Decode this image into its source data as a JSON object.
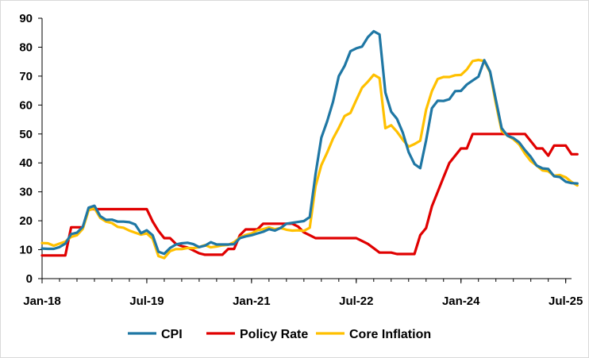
{
  "chart_data": {
    "type": "line",
    "title": "",
    "xlabel": "",
    "ylabel": "",
    "ylim": [
      0,
      90
    ],
    "yticks": [
      0,
      10,
      20,
      30,
      40,
      50,
      60,
      70,
      80,
      90
    ],
    "xlim": [
      "2018-01",
      "2025-08"
    ],
    "xtick_labels": [
      "Jan-18",
      "Jul-19",
      "Jan-21",
      "Jul-22",
      "Jan-24",
      "Jul-25"
    ],
    "grid": false,
    "legend_position": "bottom",
    "series": [
      {
        "name": "CPI",
        "color": "#1F77A4",
        "points": [
          [
            "2018-01",
            10.4
          ],
          [
            "2018-02",
            10.3
          ],
          [
            "2018-03",
            10.3
          ],
          [
            "2018-04",
            10.9
          ],
          [
            "2018-05",
            12.1
          ],
          [
            "2018-06",
            15.4
          ],
          [
            "2018-07",
            15.9
          ],
          [
            "2018-08",
            17.9
          ],
          [
            "2018-09",
            24.5
          ],
          [
            "2018-10",
            25.2
          ],
          [
            "2018-11",
            21.6
          ],
          [
            "2018-12",
            20.3
          ],
          [
            "2019-01",
            20.4
          ],
          [
            "2019-02",
            19.7
          ],
          [
            "2019-03",
            19.7
          ],
          [
            "2019-04",
            19.5
          ],
          [
            "2019-05",
            18.7
          ],
          [
            "2019-06",
            15.7
          ],
          [
            "2019-07",
            16.7
          ],
          [
            "2019-08",
            15.0
          ],
          [
            "2019-09",
            9.3
          ],
          [
            "2019-10",
            8.6
          ],
          [
            "2019-11",
            10.6
          ],
          [
            "2019-12",
            11.8
          ],
          [
            "2020-01",
            12.2
          ],
          [
            "2020-02",
            12.4
          ],
          [
            "2020-03",
            11.9
          ],
          [
            "2020-04",
            10.9
          ],
          [
            "2020-05",
            11.4
          ],
          [
            "2020-06",
            12.6
          ],
          [
            "2020-07",
            11.8
          ],
          [
            "2020-08",
            11.8
          ],
          [
            "2020-09",
            11.8
          ],
          [
            "2020-10",
            11.9
          ],
          [
            "2020-11",
            14.0
          ],
          [
            "2020-12",
            14.6
          ],
          [
            "2021-01",
            15.0
          ],
          [
            "2021-02",
            15.6
          ],
          [
            "2021-03",
            16.2
          ],
          [
            "2021-04",
            17.1
          ],
          [
            "2021-05",
            16.6
          ],
          [
            "2021-06",
            17.5
          ],
          [
            "2021-07",
            19.0
          ],
          [
            "2021-08",
            19.3
          ],
          [
            "2021-09",
            19.6
          ],
          [
            "2021-10",
            19.9
          ],
          [
            "2021-11",
            21.3
          ],
          [
            "2021-12",
            36.1
          ],
          [
            "2022-01",
            48.7
          ],
          [
            "2022-02",
            54.4
          ],
          [
            "2022-03",
            61.1
          ],
          [
            "2022-04",
            70.0
          ],
          [
            "2022-05",
            73.5
          ],
          [
            "2022-06",
            78.6
          ],
          [
            "2022-07",
            79.6
          ],
          [
            "2022-08",
            80.2
          ],
          [
            "2022-09",
            83.5
          ],
          [
            "2022-10",
            85.5
          ],
          [
            "2022-11",
            84.4
          ],
          [
            "2022-12",
            64.3
          ],
          [
            "2023-01",
            57.7
          ],
          [
            "2023-02",
            55.2
          ],
          [
            "2023-03",
            50.5
          ],
          [
            "2023-04",
            43.7
          ],
          [
            "2023-05",
            39.6
          ],
          [
            "2023-06",
            38.2
          ],
          [
            "2023-07",
            47.8
          ],
          [
            "2023-08",
            58.9
          ],
          [
            "2023-09",
            61.5
          ],
          [
            "2023-10",
            61.4
          ],
          [
            "2023-11",
            62.0
          ],
          [
            "2023-12",
            64.8
          ],
          [
            "2024-01",
            64.9
          ],
          [
            "2024-02",
            67.1
          ],
          [
            "2024-03",
            68.5
          ],
          [
            "2024-04",
            69.8
          ],
          [
            "2024-05",
            75.5
          ],
          [
            "2024-06",
            71.6
          ],
          [
            "2024-07",
            61.8
          ],
          [
            "2024-08",
            52.0
          ],
          [
            "2024-09",
            49.4
          ],
          [
            "2024-10",
            48.6
          ],
          [
            "2024-11",
            47.1
          ],
          [
            "2024-12",
            44.4
          ],
          [
            "2025-01",
            42.1
          ],
          [
            "2025-02",
            39.1
          ],
          [
            "2025-03",
            38.1
          ],
          [
            "2025-04",
            37.9
          ],
          [
            "2025-05",
            35.4
          ],
          [
            "2025-06",
            35.1
          ],
          [
            "2025-07",
            33.5
          ],
          [
            "2025-08",
            33.0
          ],
          [
            "2025-09",
            32.9
          ]
        ]
      },
      {
        "name": "Policy Rate",
        "color": "#E00000",
        "points": [
          [
            "2018-01",
            8.0
          ],
          [
            "2018-05",
            8.0
          ],
          [
            "2018-06",
            17.75
          ],
          [
            "2018-08",
            17.75
          ],
          [
            "2018-09",
            24.0
          ],
          [
            "2019-07",
            24.0
          ],
          [
            "2019-08",
            19.75
          ],
          [
            "2019-09",
            16.5
          ],
          [
            "2019-10",
            14.0
          ],
          [
            "2019-11",
            14.0
          ],
          [
            "2019-12",
            12.0
          ],
          [
            "2020-01",
            11.25
          ],
          [
            "2020-02",
            10.75
          ],
          [
            "2020-03",
            9.75
          ],
          [
            "2020-04",
            8.75
          ],
          [
            "2020-05",
            8.25
          ],
          [
            "2020-06",
            8.25
          ],
          [
            "2020-08",
            8.25
          ],
          [
            "2020-09",
            10.25
          ],
          [
            "2020-10",
            10.25
          ],
          [
            "2020-11",
            15.0
          ],
          [
            "2020-12",
            17.0
          ],
          [
            "2021-02",
            17.0
          ],
          [
            "2021-03",
            19.0
          ],
          [
            "2021-08",
            19.0
          ],
          [
            "2021-09",
            18.0
          ],
          [
            "2021-10",
            16.0
          ],
          [
            "2021-11",
            15.0
          ],
          [
            "2021-12",
            14.0
          ],
          [
            "2022-07",
            14.0
          ],
          [
            "2022-08",
            13.0
          ],
          [
            "2022-09",
            12.0
          ],
          [
            "2022-10",
            10.5
          ],
          [
            "2022-11",
            9.0
          ],
          [
            "2023-01",
            9.0
          ],
          [
            "2023-02",
            8.5
          ],
          [
            "2023-05",
            8.5
          ],
          [
            "2023-06",
            15.0
          ],
          [
            "2023-07",
            17.5
          ],
          [
            "2023-08",
            25.0
          ],
          [
            "2023-09",
            30.0
          ],
          [
            "2023-10",
            35.0
          ],
          [
            "2023-11",
            40.0
          ],
          [
            "2023-12",
            42.5
          ],
          [
            "2024-01",
            45.0
          ],
          [
            "2024-02",
            45.0
          ],
          [
            "2024-03",
            50.0
          ],
          [
            "2024-12",
            50.0
          ],
          [
            "2025-01",
            47.5
          ],
          [
            "2025-02",
            45.0
          ],
          [
            "2025-03",
            45.0
          ],
          [
            "2025-04",
            42.5
          ],
          [
            "2025-05",
            46.0
          ],
          [
            "2025-07",
            46.0
          ],
          [
            "2025-08",
            43.0
          ],
          [
            "2025-09",
            43.0
          ]
        ]
      },
      {
        "name": "Core Inflation",
        "color": "#FFC000",
        "points": [
          [
            "2018-01",
            12.3
          ],
          [
            "2018-02",
            12.2
          ],
          [
            "2018-03",
            11.4
          ],
          [
            "2018-04",
            12.1
          ],
          [
            "2018-05",
            12.8
          ],
          [
            "2018-06",
            14.4
          ],
          [
            "2018-07",
            15.0
          ],
          [
            "2018-08",
            17.2
          ],
          [
            "2018-09",
            23.6
          ],
          [
            "2018-10",
            24.3
          ],
          [
            "2018-11",
            21.0
          ],
          [
            "2018-12",
            19.7
          ],
          [
            "2019-01",
            19.2
          ],
          [
            "2019-02",
            17.9
          ],
          [
            "2019-03",
            17.6
          ],
          [
            "2019-04",
            16.6
          ],
          [
            "2019-05",
            15.9
          ],
          [
            "2019-06",
            15.2
          ],
          [
            "2019-07",
            15.6
          ],
          [
            "2019-08",
            13.8
          ],
          [
            "2019-09",
            7.8
          ],
          [
            "2019-10",
            7.1
          ],
          [
            "2019-11",
            9.5
          ],
          [
            "2019-12",
            10.2
          ],
          [
            "2020-01",
            10.2
          ],
          [
            "2020-02",
            10.6
          ],
          [
            "2020-03",
            10.5
          ],
          [
            "2020-04",
            10.9
          ],
          [
            "2020-05",
            11.6
          ],
          [
            "2020-06",
            10.8
          ],
          [
            "2020-07",
            11.1
          ],
          [
            "2020-08",
            11.5
          ],
          [
            "2020-09",
            11.7
          ],
          [
            "2020-10",
            12.6
          ],
          [
            "2020-11",
            14.2
          ],
          [
            "2020-12",
            15.1
          ],
          [
            "2021-01",
            15.6
          ],
          [
            "2021-02",
            16.7
          ],
          [
            "2021-03",
            17.1
          ],
          [
            "2021-04",
            17.7
          ],
          [
            "2021-05",
            17.1
          ],
          [
            "2021-06",
            17.5
          ],
          [
            "2021-07",
            16.9
          ],
          [
            "2021-08",
            16.6
          ],
          [
            "2021-09",
            16.7
          ],
          [
            "2021-10",
            16.5
          ],
          [
            "2021-11",
            17.6
          ],
          [
            "2021-12",
            31.9
          ],
          [
            "2022-01",
            39.2
          ],
          [
            "2022-02",
            43.6
          ],
          [
            "2022-03",
            48.4
          ],
          [
            "2022-04",
            52.1
          ],
          [
            "2022-05",
            56.2
          ],
          [
            "2022-06",
            57.3
          ],
          [
            "2022-07",
            61.7
          ],
          [
            "2022-08",
            66.0
          ],
          [
            "2022-09",
            68.1
          ],
          [
            "2022-10",
            70.5
          ],
          [
            "2022-11",
            69.3
          ],
          [
            "2022-12",
            52.0
          ],
          [
            "2023-01",
            53.0
          ],
          [
            "2023-02",
            50.8
          ],
          [
            "2023-03",
            48.0
          ],
          [
            "2023-04",
            45.6
          ],
          [
            "2023-05",
            46.5
          ],
          [
            "2023-06",
            47.7
          ],
          [
            "2023-07",
            58.4
          ],
          [
            "2023-08",
            64.8
          ],
          [
            "2023-09",
            69.0
          ],
          [
            "2023-10",
            69.7
          ],
          [
            "2023-11",
            69.7
          ],
          [
            "2023-12",
            70.3
          ],
          [
            "2024-01",
            70.4
          ],
          [
            "2024-02",
            72.3
          ],
          [
            "2024-03",
            75.2
          ],
          [
            "2024-04",
            75.6
          ],
          [
            "2024-05",
            75.2
          ],
          [
            "2024-06",
            71.3
          ],
          [
            "2024-07",
            60.5
          ],
          [
            "2024-08",
            51.0
          ],
          [
            "2024-09",
            49.4
          ],
          [
            "2024-10",
            48.2
          ],
          [
            "2024-11",
            46.4
          ],
          [
            "2024-12",
            43.2
          ],
          [
            "2025-01",
            40.6
          ],
          [
            "2025-02",
            39.1
          ],
          [
            "2025-03",
            37.4
          ],
          [
            "2025-04",
            37.1
          ],
          [
            "2025-05",
            35.6
          ],
          [
            "2025-06",
            35.8
          ],
          [
            "2025-07",
            35.0
          ],
          [
            "2025-08",
            33.4
          ],
          [
            "2025-09",
            32.2
          ]
        ]
      }
    ]
  }
}
